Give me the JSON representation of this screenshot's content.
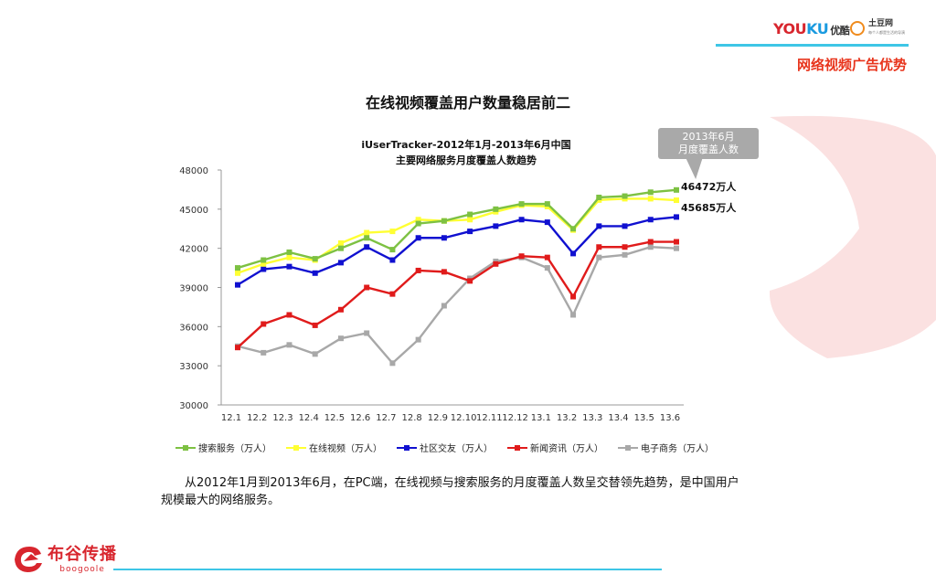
{
  "header": {
    "section_title": "网络视频广告优势",
    "youku_logo": {
      "part1": "YOU",
      "part2": "KU",
      "cn": "优酷"
    },
    "tudou_logo": {
      "name": "土豆网",
      "sub": "每个人都是生活的导演"
    }
  },
  "main_title": "在线视频覆盖用户数量稳居前二",
  "callout": {
    "line1": "2013年6月",
    "line2": "月度覆盖人数"
  },
  "value_labels": {
    "search": "46472万人",
    "video": "45685万人"
  },
  "body_text": "从2012年1月到2013年6月，在PC端，在线视频与搜索服务的月度覆盖人数呈交替领先趋势，是中国用户规模最大的网络服务。",
  "brand": {
    "name_cn": "布谷传播",
    "name_en": "boogoole"
  },
  "colors": {
    "search": "#7dc142",
    "video": "#ffff33",
    "social": "#1010d0",
    "news": "#e01b1b",
    "ecommerce": "#a8a8a8",
    "accent": "#3ec6e6",
    "title_red": "#e8341c"
  },
  "chart_data": {
    "type": "line",
    "title_line1": "iUserTracker-2012年1月-2013年6月中国",
    "title_line2": "主要网络服务月度覆盖人数趋势",
    "categories": [
      "12.1",
      "12.2",
      "12.3",
      "12.4",
      "12.5",
      "12.6",
      "12.7",
      "12.8",
      "12.9",
      "12.10",
      "12.11",
      "12.12",
      "13.1",
      "13.2",
      "13.3",
      "13.4",
      "13.5",
      "13.6"
    ],
    "ylim": [
      30000,
      48000
    ],
    "yticks": [
      30000,
      33000,
      36000,
      39000,
      42000,
      45000,
      48000
    ],
    "grid": false,
    "legend_position": "bottom",
    "series": [
      {
        "name": "搜索服务（万人）",
        "key": "search",
        "values": [
          40500,
          41100,
          41700,
          41200,
          42000,
          42800,
          41900,
          43900,
          44100,
          44600,
          45000,
          45400,
          45400,
          43500,
          45900,
          46000,
          46300,
          46472
        ]
      },
      {
        "name": "在线视频（万人）",
        "key": "video",
        "values": [
          40100,
          40800,
          41300,
          41100,
          42400,
          43200,
          43300,
          44200,
          44100,
          44200,
          44800,
          45300,
          45200,
          43400,
          45700,
          45800,
          45800,
          45685
        ]
      },
      {
        "name": "社区交友（万人）",
        "key": "social",
        "values": [
          39200,
          40400,
          40600,
          40100,
          40900,
          42100,
          41100,
          42800,
          42800,
          43300,
          43700,
          44200,
          44000,
          41600,
          43700,
          43700,
          44200,
          44400
        ]
      },
      {
        "name": "新闻资讯（万人）",
        "key": "news",
        "values": [
          34400,
          36200,
          36900,
          36100,
          37300,
          39000,
          38500,
          40300,
          40200,
          39500,
          40800,
          41400,
          41300,
          38300,
          42100,
          42100,
          42500,
          42500
        ]
      },
      {
        "name": "电子商务（万人）",
        "key": "ecommerce",
        "values": [
          34500,
          34000,
          34600,
          33900,
          35100,
          35500,
          33200,
          35000,
          37600,
          39700,
          41000,
          41300,
          40500,
          36900,
          41300,
          41500,
          42100,
          42000
        ]
      }
    ]
  }
}
